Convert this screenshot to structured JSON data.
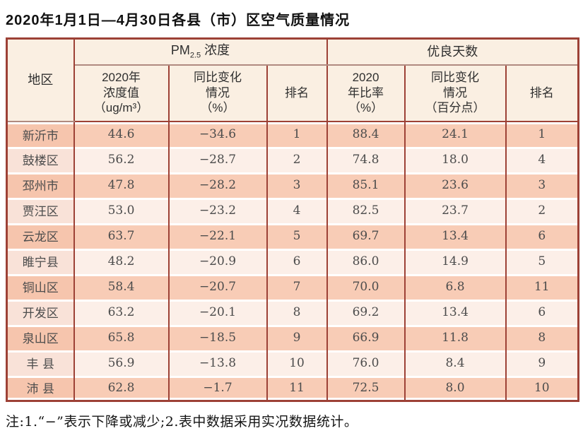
{
  "title": "2020年1月1日—4月30日各县（市）区空气质量情况",
  "note": "注:1.“−”表示下降或减少;2.表中数据采用实况数据统计。",
  "colors": {
    "border": "#9d4136",
    "header_bg": "#faefe2",
    "row_dark": "#f8ccb6",
    "row_light": "#fcefe8"
  },
  "table": {
    "region_header": "地区",
    "group1_pm": "PM",
    "group1_sub": "2.5",
    "group1_rest": " 浓度",
    "group2": "优良天数",
    "sub_headers": {
      "pm_value": "2020年\n浓度值\n（ug/m³）",
      "pm_change": "同比变化\n情况\n（%）",
      "pm_rank": "排名",
      "days_ratio": "2020\n年比率\n（%）",
      "days_change": "同比变化\n情况\n（百分点）",
      "days_rank": "排名"
    },
    "rows": [
      {
        "region": "新沂市",
        "pm_value": "44.6",
        "pm_change": "−34.6",
        "pm_rank": "1",
        "days_ratio": "88.4",
        "days_change": "24.1",
        "days_rank": "1"
      },
      {
        "region": "鼓楼区",
        "pm_value": "56.2",
        "pm_change": "−28.7",
        "pm_rank": "2",
        "days_ratio": "74.8",
        "days_change": "18.0",
        "days_rank": "4"
      },
      {
        "region": "邳州市",
        "pm_value": "47.8",
        "pm_change": "−28.2",
        "pm_rank": "3",
        "days_ratio": "85.1",
        "days_change": "23.6",
        "days_rank": "3"
      },
      {
        "region": "贾汪区",
        "pm_value": "53.0",
        "pm_change": "−23.2",
        "pm_rank": "4",
        "days_ratio": "82.5",
        "days_change": "23.7",
        "days_rank": "2"
      },
      {
        "region": "云龙区",
        "pm_value": "63.7",
        "pm_change": "−22.1",
        "pm_rank": "5",
        "days_ratio": "69.7",
        "days_change": "13.4",
        "days_rank": "6"
      },
      {
        "region": "睢宁县",
        "pm_value": "48.2",
        "pm_change": "−20.9",
        "pm_rank": "6",
        "days_ratio": "86.0",
        "days_change": "14.9",
        "days_rank": "5"
      },
      {
        "region": "铜山区",
        "pm_value": "58.4",
        "pm_change": "−20.7",
        "pm_rank": "7",
        "days_ratio": "70.0",
        "days_change": "6.8",
        "days_rank": "11"
      },
      {
        "region": "开发区",
        "pm_value": "63.2",
        "pm_change": "−20.1",
        "pm_rank": "8",
        "days_ratio": "69.2",
        "days_change": "13.4",
        "days_rank": "6"
      },
      {
        "region": "泉山区",
        "pm_value": "65.8",
        "pm_change": "−18.5",
        "pm_rank": "9",
        "days_ratio": "66.9",
        "days_change": "11.8",
        "days_rank": "8"
      },
      {
        "region": "丰 县",
        "pm_value": "56.9",
        "pm_change": "−13.8",
        "pm_rank": "10",
        "days_ratio": "76.0",
        "days_change": "8.4",
        "days_rank": "9"
      },
      {
        "region": "沛 县",
        "pm_value": "62.8",
        "pm_change": "−1.7",
        "pm_rank": "11",
        "days_ratio": "72.5",
        "days_change": "8.0",
        "days_rank": "10"
      }
    ]
  }
}
